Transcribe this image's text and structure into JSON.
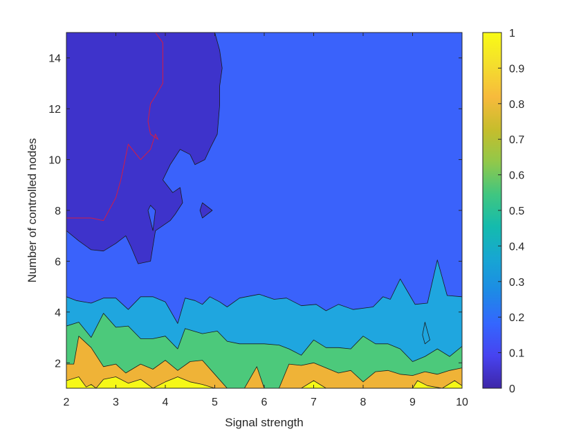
{
  "chart_data": {
    "type": "contour",
    "xlabel": "Signal strength",
    "ylabel": "Number of controlled nodes",
    "xlim": [
      2,
      10
    ],
    "ylim": [
      1,
      15
    ],
    "xticks": [
      2,
      3,
      4,
      5,
      6,
      7,
      8,
      9,
      10
    ],
    "yticks": [
      2,
      4,
      6,
      8,
      10,
      12,
      14
    ],
    "colorbar": {
      "limits": [
        0,
        1
      ],
      "ticks": [
        0,
        0.1,
        0.2,
        0.3,
        0.4,
        0.5,
        0.6,
        0.7,
        0.8,
        0.9,
        1
      ],
      "colors": [
        "#3e26a8",
        "#4743f0",
        "#3466fe",
        "#1d8be5",
        "#17a6d2",
        "#14bbad",
        "#40c680",
        "#91c84a",
        "#c6bd2c",
        "#f7ba3c",
        "#f4de2d",
        "#f9fb15"
      ]
    },
    "contour_levels": [
      0.1,
      0.2,
      0.3,
      0.5,
      0.8,
      0.9
    ],
    "level_colors": {
      "background": "#3a62fb",
      "0.1": "#3e33cb",
      "0.3": "#1fa6df",
      "0.5": "#4cc97b",
      "0.8": "#efb337",
      "0.9": "#f6f817"
    },
    "regions": [
      {
        "level": 0.3,
        "boundary": [
          [
            2,
            4.6
          ],
          [
            2.2,
            4.45
          ],
          [
            2.5,
            4.35
          ],
          [
            2.75,
            4.55
          ],
          [
            3,
            4.55
          ],
          [
            3.25,
            4.1
          ],
          [
            3.5,
            4.6
          ],
          [
            3.75,
            4.6
          ],
          [
            4,
            4.4
          ],
          [
            4.25,
            3.55
          ],
          [
            4.4,
            4.55
          ],
          [
            4.6,
            4.45
          ],
          [
            4.75,
            4.3
          ],
          [
            4.9,
            4.6
          ],
          [
            5.1,
            4.4
          ],
          [
            5.25,
            4.2
          ],
          [
            5.5,
            4.55
          ],
          [
            5.9,
            4.7
          ],
          [
            6.2,
            4.5
          ],
          [
            6.45,
            4.55
          ],
          [
            6.75,
            4.25
          ],
          [
            7.05,
            4.3
          ],
          [
            7.25,
            4.05
          ],
          [
            7.5,
            4.3
          ],
          [
            7.8,
            4.1
          ],
          [
            8.2,
            4.2
          ],
          [
            8.4,
            4.6
          ],
          [
            8.55,
            4.5
          ],
          [
            8.75,
            5.3
          ],
          [
            8.9,
            4.8
          ],
          [
            9.05,
            4.3
          ],
          [
            9.3,
            4.35
          ],
          [
            9.5,
            6.05
          ],
          [
            9.7,
            4.65
          ],
          [
            10,
            4.6
          ],
          [
            10,
            1
          ],
          [
            2,
            1
          ]
        ]
      },
      {
        "level": 0.5,
        "boundary": [
          [
            2,
            3.45
          ],
          [
            2.25,
            3.6
          ],
          [
            2.5,
            3
          ],
          [
            2.75,
            3.95
          ],
          [
            3,
            3.4
          ],
          [
            3.25,
            3.45
          ],
          [
            3.5,
            2.95
          ],
          [
            3.75,
            2.95
          ],
          [
            4,
            3.05
          ],
          [
            4.25,
            2.55
          ],
          [
            4.4,
            3.35
          ],
          [
            4.75,
            3.15
          ],
          [
            5.05,
            3.25
          ],
          [
            5.25,
            2.85
          ],
          [
            5.5,
            2.75
          ],
          [
            6,
            2.75
          ],
          [
            6.3,
            2.7
          ],
          [
            6.5,
            2.55
          ],
          [
            6.75,
            2.3
          ],
          [
            7,
            2.9
          ],
          [
            7.25,
            2.6
          ],
          [
            7.5,
            2.6
          ],
          [
            7.75,
            2.55
          ],
          [
            8,
            3.05
          ],
          [
            8.25,
            2.75
          ],
          [
            8.5,
            2.75
          ],
          [
            8.75,
            2.55
          ],
          [
            9,
            2.05
          ],
          [
            9.25,
            2.25
          ],
          [
            9.5,
            2.55
          ],
          [
            9.75,
            2.25
          ],
          [
            10,
            2.65
          ],
          [
            10,
            1
          ],
          [
            2,
            1
          ]
        ]
      },
      {
        "level": 0.8,
        "boundary": [
          [
            2,
            1.95
          ],
          [
            2.15,
            1.95
          ],
          [
            2.25,
            3.05
          ],
          [
            2.5,
            2.6
          ],
          [
            2.75,
            1.85
          ],
          [
            3,
            1.95
          ],
          [
            3.2,
            1.6
          ],
          [
            3.5,
            1.95
          ],
          [
            3.75,
            1.75
          ],
          [
            4,
            2.1
          ],
          [
            4.25,
            1.7
          ],
          [
            4.5,
            2.05
          ],
          [
            4.75,
            2.1
          ],
          [
            5,
            1.55
          ],
          [
            5.25,
            1
          ],
          [
            5.6,
            1
          ],
          [
            5.85,
            1.85
          ],
          [
            6,
            1
          ],
          [
            6.3,
            1
          ],
          [
            6.5,
            1.95
          ],
          [
            6.75,
            1.9
          ],
          [
            7,
            2
          ],
          [
            7.25,
            1.8
          ],
          [
            7.5,
            1.6
          ],
          [
            7.75,
            1.7
          ],
          [
            8,
            1.25
          ],
          [
            8.25,
            1.65
          ],
          [
            8.5,
            1.7
          ],
          [
            8.75,
            1.55
          ],
          [
            9,
            1.5
          ],
          [
            9.25,
            1.65
          ],
          [
            9.5,
            1.55
          ],
          [
            9.75,
            1.7
          ],
          [
            10,
            1.8
          ],
          [
            10,
            1
          ],
          [
            2,
            1
          ]
        ]
      },
      {
        "level": 0.9,
        "boundary": [
          [
            2,
            1
          ],
          [
            2,
            1.3
          ],
          [
            2.25,
            1.45
          ],
          [
            2.4,
            1.05
          ],
          [
            2.5,
            1.15
          ],
          [
            2.6,
            1
          ],
          [
            2.75,
            1.35
          ],
          [
            3,
            1.45
          ],
          [
            3.25,
            1.2
          ],
          [
            3.5,
            1.35
          ],
          [
            3.75,
            1
          ],
          [
            4,
            1.25
          ],
          [
            4.25,
            1.45
          ],
          [
            4.5,
            1.25
          ],
          [
            4.75,
            1.15
          ],
          [
            5,
            1
          ],
          [
            6.75,
            1
          ],
          [
            7,
            1.3
          ],
          [
            7.25,
            1
          ],
          [
            9,
            1
          ],
          [
            9.1,
            1.3
          ],
          [
            9.3,
            1.1
          ],
          [
            9.6,
            1
          ],
          [
            9.85,
            1.3
          ],
          [
            10,
            1.1
          ],
          [
            10,
            1
          ]
        ]
      },
      {
        "level": 0.1,
        "boundary": [
          [
            2,
            15
          ],
          [
            3.8,
            15
          ],
          [
            3.8,
            15
          ],
          [
            5,
            15
          ],
          [
            5.1,
            14.3
          ],
          [
            5.15,
            13.6
          ],
          [
            5.1,
            12.9
          ],
          [
            5.1,
            12.15
          ],
          [
            5.05,
            11
          ],
          [
            4.92,
            10.5
          ],
          [
            4.8,
            10
          ],
          [
            4.6,
            9.8
          ],
          [
            4.5,
            10.2
          ],
          [
            4.3,
            10.4
          ],
          [
            4.1,
            9.8
          ],
          [
            3.95,
            9.2
          ],
          [
            4.15,
            8.7
          ],
          [
            4.3,
            8.9
          ],
          [
            4.35,
            8.3
          ],
          [
            4.2,
            7.85
          ],
          [
            4.1,
            7.6
          ],
          [
            3.8,
            7.2
          ],
          [
            3.7,
            6
          ],
          [
            3.45,
            5.9
          ],
          [
            3.3,
            6.6
          ],
          [
            3.2,
            7
          ],
          [
            3,
            6.7
          ],
          [
            2.75,
            6.4
          ],
          [
            2.5,
            6.45
          ],
          [
            2.25,
            6.8
          ],
          [
            2,
            7.2
          ]
        ]
      },
      {
        "level": 0.1,
        "boundary": [
          [
            4.75,
            8.3
          ],
          [
            4.95,
            8
          ],
          [
            4.75,
            7.7
          ],
          [
            4.7,
            8
          ]
        ]
      },
      {
        "level": 0.3,
        "boundary": [
          [
            9.25,
            3.6
          ],
          [
            9.35,
            2.9
          ],
          [
            9.25,
            2.75
          ],
          [
            9.2,
            3.1
          ]
        ]
      }
    ],
    "holes": [
      {
        "level": 0.2,
        "boundary": [
          [
            3.7,
            8.2
          ],
          [
            3.8,
            8
          ],
          [
            3.75,
            7.2
          ],
          [
            3.65,
            8
          ]
        ]
      }
    ],
    "highlight_contour": {
      "color": "#d41c44",
      "points": [
        [
          2,
          7.7
        ],
        [
          2.25,
          7.7
        ],
        [
          2.5,
          7.7
        ],
        [
          2.75,
          7.6
        ],
        [
          3,
          8.5
        ],
        [
          3.1,
          9.2
        ],
        [
          3.25,
          10.6
        ],
        [
          3.5,
          10
        ],
        [
          3.7,
          10.4
        ],
        [
          3.8,
          11
        ],
        [
          3.85,
          10.8
        ],
        [
          3.7,
          11
        ],
        [
          3.65,
          11.5
        ],
        [
          3.7,
          12.2
        ],
        [
          3.8,
          12.5
        ],
        [
          3.95,
          13
        ],
        [
          3.95,
          14
        ],
        [
          3.95,
          14.6
        ],
        [
          3.8,
          15
        ]
      ]
    }
  }
}
